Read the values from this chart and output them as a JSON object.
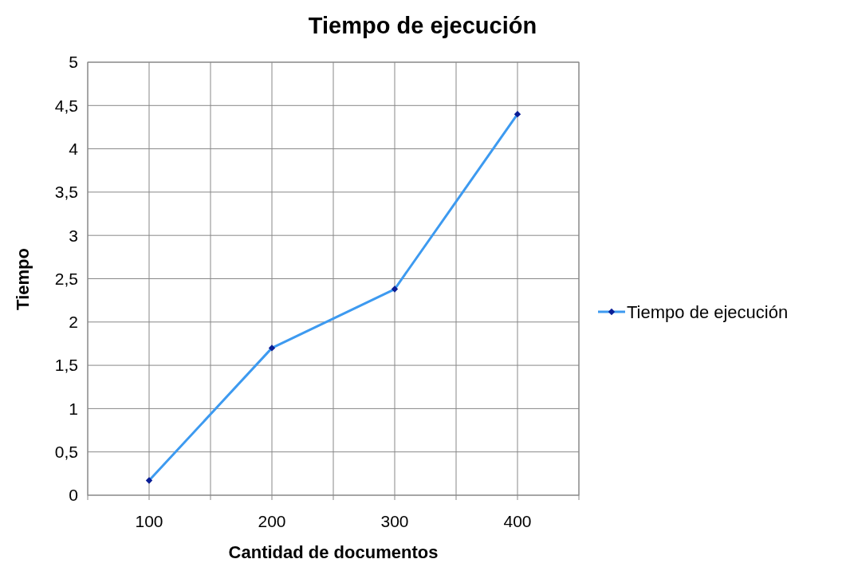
{
  "chart_data": {
    "type": "line",
    "title": "Tiempo de ejecución",
    "xlabel": "Cantidad de documentos",
    "ylabel": "Tiempo",
    "x": [
      100,
      200,
      300,
      400
    ],
    "series": [
      {
        "name": "Tiempo de ejecución",
        "color": "#3d9af0",
        "values": [
          0.17,
          1.7,
          2.38,
          4.4
        ]
      }
    ],
    "xlim": [
      50,
      450
    ],
    "xticks": [
      {
        "value": 50,
        "label": null
      },
      100,
      {
        "value": 150,
        "label": null
      },
      200,
      {
        "value": 250,
        "label": null
      },
      300,
      {
        "value": 350,
        "label": null
      },
      400,
      {
        "value": 450,
        "label": null
      }
    ],
    "ylim": [
      0,
      5
    ],
    "yticks": [
      0,
      {
        "value": 0.5,
        "label": "0,5"
      },
      1,
      {
        "value": 1.5,
        "label": "1,5"
      },
      2,
      {
        "value": 2.5,
        "label": "2,5"
      },
      3,
      {
        "value": 3.5,
        "label": "3,5"
      },
      4,
      {
        "value": 4.5,
        "label": "4,5"
      },
      5
    ],
    "grid": true,
    "legend": "right",
    "marker": "diamond",
    "line_style": "solid"
  }
}
